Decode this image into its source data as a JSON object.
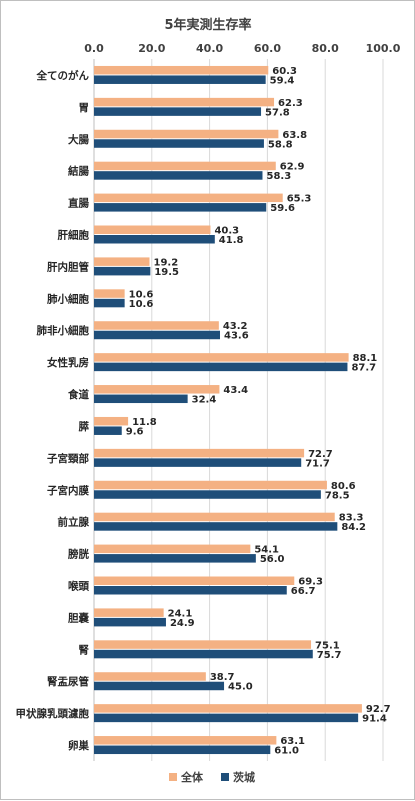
{
  "chart_data": {
    "type": "bar",
    "orientation": "horizontal",
    "title": "5年実測生存率",
    "xlim": [
      0,
      100
    ],
    "x_ticks": [
      "0.0",
      "20.0",
      "40.0",
      "60.0",
      "80.0",
      "100.0"
    ],
    "tick_axis_position": "top",
    "grid": true,
    "legend_position": "bottom",
    "categories": [
      "全てのがん",
      "胃",
      "大腸",
      "結腸",
      "直腸",
      "肝細胞",
      "肝内胆管",
      "肺小細胞",
      "肺非小細胞",
      "女性乳房",
      "食道",
      "膵",
      "子宮頸部",
      "子宮内膜",
      "前立腺",
      "膀胱",
      "喉頭",
      "胆嚢",
      "腎",
      "腎盂尿管",
      "甲状腺乳頭濾胞",
      "卵巣"
    ],
    "series": [
      {
        "name": "全体",
        "color": "#F4B183",
        "values": [
          60.3,
          62.3,
          63.8,
          62.9,
          65.3,
          40.3,
          19.2,
          10.6,
          43.2,
          88.1,
          43.4,
          11.8,
          72.7,
          80.6,
          83.3,
          54.1,
          69.3,
          24.1,
          75.1,
          38.7,
          92.7,
          63.1
        ]
      },
      {
        "name": "茨城",
        "color": "#1F4E79",
        "values": [
          59.4,
          57.8,
          58.8,
          58.3,
          59.6,
          41.8,
          19.5,
          10.6,
          43.6,
          87.7,
          32.4,
          9.6,
          71.7,
          78.5,
          84.2,
          56.0,
          66.7,
          24.9,
          75.7,
          45.0,
          91.4,
          61.0
        ]
      }
    ]
  }
}
